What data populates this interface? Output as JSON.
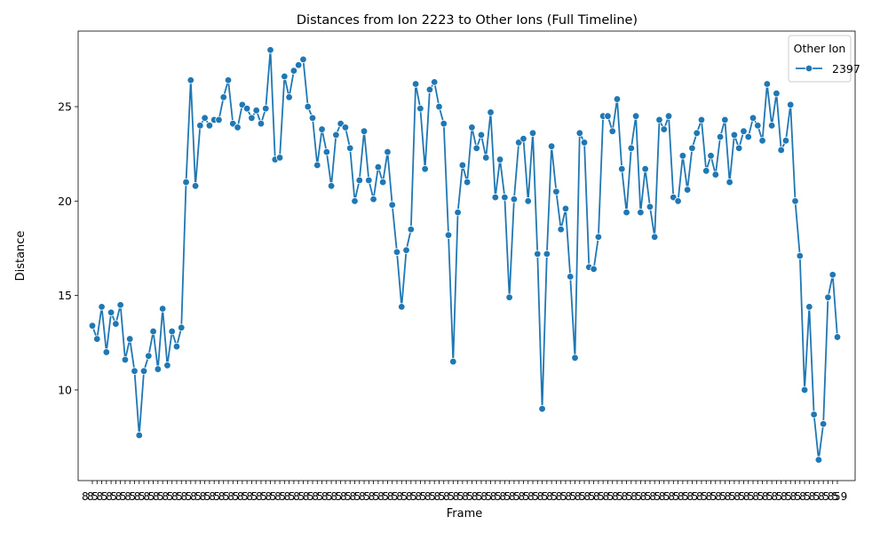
{
  "chart_data": {
    "type": "line",
    "title": "Distances from Ion 2223 to Other Ions (Full Timeline)",
    "xlabel": "Frame",
    "ylabel": "Distance",
    "ylim": [
      5.2,
      29.0
    ],
    "yticks": [
      10,
      15,
      20,
      25
    ],
    "grid": false,
    "legend": {
      "title": "Other Ion",
      "placement": "top-right",
      "entries": [
        "2397"
      ]
    },
    "x_tick_labels_note": "frame tick labels are dense and overlapping",
    "xtick_first": "8",
    "xtick_last": "59",
    "series": [
      {
        "name": "2397",
        "color": "#1f77b4",
        "values": [
          13.4,
          12.7,
          14.4,
          12.0,
          14.1,
          13.5,
          14.5,
          11.6,
          12.7,
          11.0,
          7.6,
          11.0,
          11.8,
          13.1,
          11.1,
          14.3,
          11.3,
          13.1,
          12.3,
          13.3,
          21.0,
          26.4,
          20.8,
          24.0,
          24.4,
          24.0,
          24.3,
          24.3,
          25.5,
          26.4,
          24.1,
          23.9,
          25.1,
          24.9,
          24.4,
          24.8,
          24.1,
          24.9,
          28.0,
          22.2,
          22.3,
          26.6,
          25.5,
          26.9,
          27.2,
          27.5,
          25.0,
          24.4,
          21.9,
          23.8,
          22.6,
          20.8,
          23.5,
          24.1,
          23.9,
          22.8,
          20.0,
          21.1,
          23.7,
          21.1,
          20.1,
          21.8,
          21.0,
          22.6,
          19.8,
          17.3,
          14.4,
          17.4,
          18.5,
          26.2,
          24.9,
          21.7,
          25.9,
          26.3,
          25.0,
          24.1,
          18.2,
          11.5,
          19.4,
          21.9,
          21.0,
          23.9,
          22.8,
          23.5,
          22.3,
          24.7,
          20.2,
          22.2,
          20.2,
          14.9,
          20.1,
          23.1,
          23.3,
          20.0,
          23.6,
          17.2,
          9.0,
          17.2,
          22.9,
          20.5,
          18.5,
          19.6,
          16.0,
          11.7,
          23.6,
          23.1,
          16.5,
          16.4,
          18.1,
          24.5,
          24.5,
          23.7,
          25.4,
          21.7,
          19.4,
          22.8,
          24.5,
          19.4,
          21.7,
          19.7,
          18.1,
          24.3,
          23.8,
          24.5,
          20.2,
          20.0,
          22.4,
          20.6,
          22.8,
          23.6,
          24.3,
          21.6,
          22.4,
          21.4,
          23.4,
          24.3,
          21.0,
          23.5,
          22.8,
          23.7,
          23.4,
          24.4,
          24.0,
          23.2,
          26.2,
          24.0,
          25.7,
          22.7,
          23.2,
          25.1,
          20.0,
          17.1,
          10.0,
          14.4,
          8.7,
          6.3,
          8.2,
          14.9,
          16.1,
          12.8
        ]
      }
    ]
  }
}
